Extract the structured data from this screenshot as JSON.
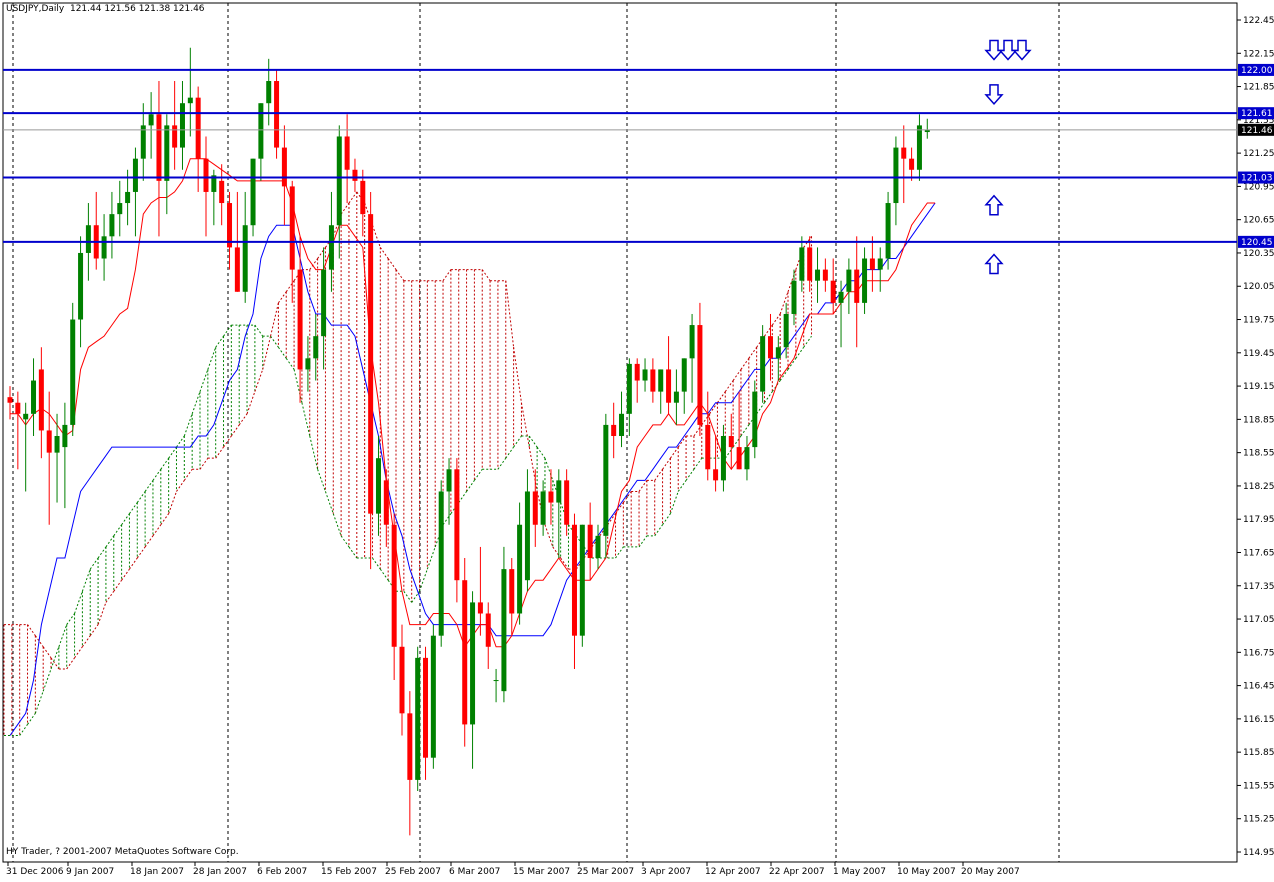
{
  "chart_data": {
    "type": "candlestick",
    "symbol": "USDJPY",
    "timeframe": "Daily",
    "header": {
      "symbol_tf": "USDJPY,Daily",
      "ohlc": "121.44 121.56 121.38 121.46"
    },
    "copyright": "HY Trader, ? 2001-2007 MetaQuotes Software Corp.",
    "ylim": [
      114.95,
      122.45
    ],
    "y_ticks": [
      "122.45",
      "122.15",
      "121.85",
      "121.55",
      "121.25",
      "120.95",
      "120.65",
      "120.35",
      "120.05",
      "119.75",
      "119.45",
      "119.15",
      "118.85",
      "118.55",
      "118.25",
      "117.95",
      "117.65",
      "117.35",
      "117.05",
      "116.75",
      "116.45",
      "116.15",
      "115.85",
      "115.55",
      "115.25",
      "114.95"
    ],
    "x_labels": [
      "31 Dec 2006",
      "9 Jan 2007",
      "18 Jan 2007",
      "28 Jan 2007",
      "6 Feb 2007",
      "15 Feb 2007",
      "25 Feb 2007",
      "6 Mar 2007",
      "15 Mar 2007",
      "25 Mar 2007",
      "3 Apr 2007",
      "12 Apr 2007",
      "22 Apr 2007",
      "1 May 2007",
      "10 May 2007",
      "20 May 2007"
    ],
    "grid": "vertical-dashed",
    "current_price": "121.46",
    "levels": [
      {
        "value": 122.0,
        "label": "122.00"
      },
      {
        "value": 121.61,
        "label": "121.61"
      },
      {
        "value": 121.03,
        "label": "121.03"
      },
      {
        "value": 120.45,
        "label": "120.45"
      }
    ],
    "arrows": [
      {
        "direction": "down",
        "price": 122.18,
        "count": 3
      },
      {
        "direction": "down",
        "price": 121.78,
        "count": 1
      },
      {
        "direction": "up",
        "price": 120.78,
        "count": 1
      },
      {
        "direction": "up",
        "price": 120.25,
        "count": 1
      }
    ],
    "colors": {
      "bull": "#008000",
      "bear": "#ff0000",
      "tenkan": "#ff0000",
      "kijun": "#0000ff",
      "cloud_bull": "#008000",
      "cloud_bear": "#c00000",
      "level": "#0000cc"
    },
    "candles": [
      {
        "o": 119.05,
        "h": 119.15,
        "l": 118.85,
        "c": 119.0
      },
      {
        "o": 119.0,
        "h": 119.1,
        "l": 118.4,
        "c": 118.9
      },
      {
        "o": 118.85,
        "h": 119.0,
        "l": 118.2,
        "c": 118.9
      },
      {
        "o": 118.9,
        "h": 119.4,
        "l": 118.7,
        "c": 119.2
      },
      {
        "o": 119.3,
        "h": 119.5,
        "l": 118.5,
        "c": 118.75
      },
      {
        "o": 118.75,
        "h": 119.1,
        "l": 117.9,
        "c": 118.55
      },
      {
        "o": 118.55,
        "h": 118.9,
        "l": 118.1,
        "c": 118.7
      },
      {
        "o": 118.6,
        "h": 119.0,
        "l": 118.05,
        "c": 118.8
      },
      {
        "o": 118.8,
        "h": 119.9,
        "l": 118.7,
        "c": 119.75
      },
      {
        "o": 119.75,
        "h": 120.5,
        "l": 119.5,
        "c": 120.35
      },
      {
        "o": 120.35,
        "h": 120.8,
        "l": 120.1,
        "c": 120.6
      },
      {
        "o": 120.6,
        "h": 120.9,
        "l": 120.2,
        "c": 120.3
      },
      {
        "o": 120.3,
        "h": 120.7,
        "l": 120.1,
        "c": 120.5
      },
      {
        "o": 120.5,
        "h": 120.9,
        "l": 120.3,
        "c": 120.7
      },
      {
        "o": 120.7,
        "h": 121.0,
        "l": 120.5,
        "c": 120.8
      },
      {
        "o": 120.8,
        "h": 121.1,
        "l": 120.6,
        "c": 120.9
      },
      {
        "o": 120.9,
        "h": 121.3,
        "l": 120.5,
        "c": 121.2
      },
      {
        "o": 121.2,
        "h": 121.7,
        "l": 121.0,
        "c": 121.5
      },
      {
        "o": 121.5,
        "h": 121.8,
        "l": 121.2,
        "c": 121.6
      },
      {
        "o": 121.6,
        "h": 121.9,
        "l": 120.5,
        "c": 121.0
      },
      {
        "o": 121.0,
        "h": 121.6,
        "l": 120.7,
        "c": 121.5
      },
      {
        "o": 121.5,
        "h": 121.9,
        "l": 121.1,
        "c": 121.3
      },
      {
        "o": 121.3,
        "h": 121.9,
        "l": 121.1,
        "c": 121.7
      },
      {
        "o": 121.7,
        "h": 122.2,
        "l": 121.4,
        "c": 121.75
      },
      {
        "o": 121.75,
        "h": 121.85,
        "l": 120.9,
        "c": 121.2
      },
      {
        "o": 121.2,
        "h": 121.4,
        "l": 120.5,
        "c": 120.9
      },
      {
        "o": 120.9,
        "h": 121.1,
        "l": 120.6,
        "c": 121.05
      },
      {
        "o": 121.0,
        "h": 121.15,
        "l": 120.6,
        "c": 120.8
      },
      {
        "o": 120.8,
        "h": 120.9,
        "l": 120.2,
        "c": 120.4
      },
      {
        "o": 120.4,
        "h": 120.9,
        "l": 120.0,
        "c": 120.0
      },
      {
        "o": 120.0,
        "h": 120.9,
        "l": 119.9,
        "c": 120.6
      },
      {
        "o": 120.6,
        "h": 121.2,
        "l": 120.5,
        "c": 121.2
      },
      {
        "o": 121.2,
        "h": 121.7,
        "l": 121.0,
        "c": 121.7
      },
      {
        "o": 121.7,
        "h": 122.1,
        "l": 121.5,
        "c": 121.9
      },
      {
        "o": 121.9,
        "h": 122.0,
        "l": 121.2,
        "c": 121.3
      },
      {
        "o": 121.3,
        "h": 121.5,
        "l": 120.6,
        "c": 120.95
      },
      {
        "o": 120.95,
        "h": 121.0,
        "l": 119.9,
        "c": 120.2
      },
      {
        "o": 120.2,
        "h": 120.5,
        "l": 119.0,
        "c": 119.3
      },
      {
        "o": 119.3,
        "h": 119.6,
        "l": 119.1,
        "c": 119.4
      },
      {
        "o": 119.4,
        "h": 119.8,
        "l": 119.2,
        "c": 119.6
      },
      {
        "o": 119.6,
        "h": 120.4,
        "l": 119.3,
        "c": 120.2
      },
      {
        "o": 120.2,
        "h": 120.9,
        "l": 120.0,
        "c": 120.6
      },
      {
        "o": 120.6,
        "h": 121.5,
        "l": 120.3,
        "c": 121.4
      },
      {
        "o": 121.4,
        "h": 121.6,
        "l": 120.8,
        "c": 121.1
      },
      {
        "o": 121.1,
        "h": 121.2,
        "l": 120.9,
        "c": 121.0
      },
      {
        "o": 121.0,
        "h": 121.1,
        "l": 120.5,
        "c": 120.7
      },
      {
        "o": 120.7,
        "h": 120.9,
        "l": 117.5,
        "c": 118.0
      },
      {
        "o": 118.0,
        "h": 118.7,
        "l": 117.8,
        "c": 118.5
      },
      {
        "o": 118.3,
        "h": 118.4,
        "l": 117.7,
        "c": 117.9
      },
      {
        "o": 117.9,
        "h": 118.0,
        "l": 116.5,
        "c": 116.8
      },
      {
        "o": 116.8,
        "h": 117.0,
        "l": 116.0,
        "c": 116.2
      },
      {
        "o": 116.2,
        "h": 116.4,
        "l": 115.1,
        "c": 115.6
      },
      {
        "o": 115.6,
        "h": 116.8,
        "l": 115.5,
        "c": 116.7
      },
      {
        "o": 116.7,
        "h": 116.8,
        "l": 115.6,
        "c": 115.8
      },
      {
        "o": 115.8,
        "h": 117.0,
        "l": 115.7,
        "c": 116.9
      },
      {
        "o": 116.9,
        "h": 118.3,
        "l": 116.8,
        "c": 118.2
      },
      {
        "o": 118.2,
        "h": 118.5,
        "l": 117.9,
        "c": 118.4
      },
      {
        "o": 118.4,
        "h": 118.5,
        "l": 117.2,
        "c": 117.4
      },
      {
        "o": 117.4,
        "h": 117.6,
        "l": 115.9,
        "c": 116.1
      },
      {
        "o": 116.1,
        "h": 117.3,
        "l": 115.7,
        "c": 117.2
      },
      {
        "o": 117.2,
        "h": 117.7,
        "l": 116.9,
        "c": 117.1
      },
      {
        "o": 117.1,
        "h": 117.2,
        "l": 116.6,
        "c": 116.8
      },
      {
        "o": 116.5,
        "h": 116.6,
        "l": 116.3,
        "c": 116.5
      },
      {
        "o": 116.4,
        "h": 117.7,
        "l": 116.3,
        "c": 117.5
      },
      {
        "o": 117.5,
        "h": 117.6,
        "l": 116.9,
        "c": 117.1
      },
      {
        "o": 117.1,
        "h": 118.1,
        "l": 117.0,
        "c": 117.9
      },
      {
        "o": 117.4,
        "h": 118.4,
        "l": 117.3,
        "c": 118.2
      },
      {
        "o": 118.2,
        "h": 118.4,
        "l": 117.7,
        "c": 117.9
      },
      {
        "o": 117.9,
        "h": 118.3,
        "l": 117.8,
        "c": 118.2
      },
      {
        "o": 118.2,
        "h": 118.4,
        "l": 117.9,
        "c": 118.1
      },
      {
        "o": 118.1,
        "h": 118.4,
        "l": 117.6,
        "c": 118.3
      },
      {
        "o": 118.3,
        "h": 118.4,
        "l": 117.8,
        "c": 117.9
      },
      {
        "o": 117.9,
        "h": 118.0,
        "l": 116.6,
        "c": 116.9
      },
      {
        "o": 116.9,
        "h": 117.9,
        "l": 116.8,
        "c": 117.9
      },
      {
        "o": 117.9,
        "h": 118.1,
        "l": 117.4,
        "c": 117.6
      },
      {
        "o": 117.6,
        "h": 117.9,
        "l": 117.5,
        "c": 117.8
      },
      {
        "o": 117.8,
        "h": 118.9,
        "l": 117.6,
        "c": 118.8
      },
      {
        "o": 118.8,
        "h": 119.0,
        "l": 118.5,
        "c": 118.7
      },
      {
        "o": 118.7,
        "h": 119.1,
        "l": 118.6,
        "c": 118.9
      },
      {
        "o": 118.9,
        "h": 119.4,
        "l": 118.7,
        "c": 119.35
      },
      {
        "o": 119.35,
        "h": 119.4,
        "l": 119.0,
        "c": 119.2
      },
      {
        "o": 119.2,
        "h": 119.4,
        "l": 119.1,
        "c": 119.3
      },
      {
        "o": 119.3,
        "h": 119.4,
        "l": 119.0,
        "c": 119.1
      },
      {
        "o": 119.1,
        "h": 119.3,
        "l": 118.9,
        "c": 119.3
      },
      {
        "o": 119.3,
        "h": 119.6,
        "l": 118.9,
        "c": 119.0
      },
      {
        "o": 119.0,
        "h": 119.3,
        "l": 118.8,
        "c": 119.1
      },
      {
        "o": 119.1,
        "h": 119.4,
        "l": 118.9,
        "c": 119.4
      },
      {
        "o": 119.4,
        "h": 119.8,
        "l": 119.0,
        "c": 119.7
      },
      {
        "o": 119.7,
        "h": 119.9,
        "l": 118.7,
        "c": 118.8
      },
      {
        "o": 118.8,
        "h": 119.1,
        "l": 118.3,
        "c": 118.4
      },
      {
        "o": 118.4,
        "h": 118.7,
        "l": 118.2,
        "c": 118.3
      },
      {
        "o": 118.3,
        "h": 118.8,
        "l": 118.2,
        "c": 118.7
      },
      {
        "o": 118.7,
        "h": 118.9,
        "l": 118.4,
        "c": 118.6
      },
      {
        "o": 118.6,
        "h": 119.1,
        "l": 118.4,
        "c": 118.4
      },
      {
        "o": 118.4,
        "h": 118.7,
        "l": 118.3,
        "c": 118.6
      },
      {
        "o": 118.6,
        "h": 119.2,
        "l": 118.5,
        "c": 119.1
      },
      {
        "o": 119.1,
        "h": 119.7,
        "l": 119.0,
        "c": 119.6
      },
      {
        "o": 119.6,
        "h": 119.8,
        "l": 119.2,
        "c": 119.4
      },
      {
        "o": 119.4,
        "h": 119.6,
        "l": 119.2,
        "c": 119.5
      },
      {
        "o": 119.5,
        "h": 119.9,
        "l": 119.4,
        "c": 119.8
      },
      {
        "o": 119.8,
        "h": 120.2,
        "l": 119.7,
        "c": 120.1
      },
      {
        "o": 120.1,
        "h": 120.5,
        "l": 120.0,
        "c": 120.4
      },
      {
        "o": 120.4,
        "h": 120.5,
        "l": 120.0,
        "c": 120.1
      },
      {
        "o": 120.1,
        "h": 120.4,
        "l": 119.9,
        "c": 120.2
      },
      {
        "o": 120.2,
        "h": 120.3,
        "l": 120.0,
        "c": 120.1
      },
      {
        "o": 120.1,
        "h": 120.3,
        "l": 119.8,
        "c": 119.9
      },
      {
        "o": 119.9,
        "h": 120.1,
        "l": 119.5,
        "c": 120.0
      },
      {
        "o": 120.0,
        "h": 120.3,
        "l": 119.8,
        "c": 120.2
      },
      {
        "o": 120.2,
        "h": 120.5,
        "l": 119.5,
        "c": 119.9
      },
      {
        "o": 119.9,
        "h": 120.4,
        "l": 119.8,
        "c": 120.3
      },
      {
        "o": 120.3,
        "h": 120.5,
        "l": 120.0,
        "c": 120.2
      },
      {
        "o": 120.2,
        "h": 120.4,
        "l": 120.0,
        "c": 120.3
      },
      {
        "o": 120.3,
        "h": 120.9,
        "l": 120.2,
        "c": 120.8
      },
      {
        "o": 120.8,
        "h": 121.4,
        "l": 120.6,
        "c": 121.3
      },
      {
        "o": 121.3,
        "h": 121.5,
        "l": 120.8,
        "c": 121.2
      },
      {
        "o": 121.2,
        "h": 121.3,
        "l": 121.0,
        "c": 121.1
      },
      {
        "o": 121.1,
        "h": 121.6,
        "l": 121.0,
        "c": 121.5
      },
      {
        "o": 121.44,
        "h": 121.56,
        "l": 121.38,
        "c": 121.46
      }
    ],
    "tenkan": [
      118.9,
      118.9,
      118.8,
      118.9,
      118.95,
      118.9,
      118.8,
      118.7,
      118.75,
      119.3,
      119.5,
      119.55,
      119.6,
      119.7,
      119.8,
      119.85,
      120.2,
      120.7,
      120.8,
      120.85,
      120.85,
      120.9,
      121.0,
      121.2,
      121.2,
      121.2,
      121.15,
      121.1,
      121.05,
      121.0,
      121.0,
      121.0,
      121.0,
      121.0,
      121.0,
      121.0,
      120.8,
      120.5,
      120.3,
      120.2,
      120.2,
      120.4,
      120.6,
      120.6,
      120.5,
      120.4,
      119.5,
      119.0,
      118.3,
      117.8,
      117.3,
      117.0,
      117.0,
      117.0,
      117.1,
      117.1,
      117.1,
      117.0,
      116.8,
      116.9,
      117.0,
      117.0,
      116.8,
      116.8,
      116.9,
      117.1,
      117.3,
      117.4,
      117.4,
      117.5,
      117.6,
      117.5,
      117.4,
      117.4,
      117.4,
      117.5,
      117.6,
      117.9,
      118.2,
      118.3,
      118.6,
      118.7,
      118.8,
      118.8,
      118.9,
      118.8,
      118.8,
      118.9,
      119.0,
      118.9,
      118.7,
      118.5,
      118.4,
      118.5,
      118.6,
      118.7,
      118.9,
      119.0,
      119.2,
      119.3,
      119.4,
      119.6,
      119.8,
      119.8,
      119.8,
      119.8,
      119.9,
      120.0,
      120.0,
      120.1,
      120.1,
      120.1,
      120.1,
      120.2,
      120.4,
      120.6,
      120.7,
      120.8,
      120.8
    ],
    "kijun": [
      116.0,
      116.1,
      116.2,
      116.5,
      117.0,
      117.3,
      117.6,
      117.6,
      117.9,
      118.2,
      118.3,
      118.4,
      118.5,
      118.6,
      118.6,
      118.6,
      118.6,
      118.6,
      118.6,
      118.6,
      118.6,
      118.6,
      118.6,
      118.6,
      118.7,
      118.7,
      118.8,
      119.0,
      119.2,
      119.3,
      119.6,
      119.8,
      120.3,
      120.5,
      120.6,
      120.6,
      120.6,
      120.3,
      120.0,
      119.8,
      119.8,
      119.7,
      119.7,
      119.7,
      119.6,
      119.3,
      119.0,
      118.7,
      118.3,
      118.0,
      117.8,
      117.5,
      117.3,
      117.1,
      117.0,
      117.0,
      117.0,
      117.0,
      117.0,
      117.0,
      117.0,
      117.0,
      116.9,
      116.9,
      116.9,
      116.9,
      116.9,
      116.9,
      116.9,
      117.0,
      117.2,
      117.4,
      117.5,
      117.6,
      117.7,
      117.8,
      117.9,
      118.0,
      118.1,
      118.2,
      118.3,
      118.3,
      118.4,
      118.5,
      118.6,
      118.6,
      118.7,
      118.8,
      118.9,
      118.9,
      119.0,
      119.0,
      119.0,
      119.1,
      119.2,
      119.3,
      119.3,
      119.4,
      119.4,
      119.5,
      119.6,
      119.7,
      119.8,
      119.8,
      119.9,
      119.9,
      120.0,
      120.1,
      120.1,
      120.2,
      120.2,
      120.2,
      120.3,
      120.3,
      120.4,
      120.5,
      120.6,
      120.7,
      120.8
    ],
    "senkou_a": [
      117.0,
      117.0,
      117.0,
      117.0,
      116.9,
      116.8,
      116.7,
      116.6,
      116.6,
      116.7,
      116.8,
      116.9,
      117.0,
      117.2,
      117.3,
      117.4,
      117.5,
      117.6,
      117.7,
      117.8,
      117.9,
      118.0,
      118.2,
      118.3,
      118.4,
      118.4,
      118.5,
      118.5,
      118.6,
      118.7,
      118.8,
      118.9,
      119.1,
      119.3,
      119.6,
      119.9,
      120.0,
      120.1,
      120.2,
      120.2,
      120.3,
      120.4,
      120.5,
      120.7,
      120.8,
      120.9,
      120.8,
      120.6,
      120.4,
      120.3,
      120.2,
      120.1,
      120.1,
      120.1,
      120.1,
      120.1,
      120.1,
      120.2,
      120.2,
      120.2,
      120.2,
      120.2,
      120.1,
      120.1,
      120.1,
      119.5,
      119.0,
      118.6,
      118.2,
      117.9,
      117.7,
      117.6,
      117.5,
      117.5,
      117.6,
      117.7,
      117.8,
      117.9,
      118.0,
      118.1,
      118.2,
      118.2,
      118.3,
      118.3,
      118.4,
      118.5,
      118.6,
      118.7,
      118.7,
      118.8,
      118.9,
      119.0,
      119.1,
      119.2,
      119.3,
      119.4,
      119.5,
      119.6,
      119.7,
      119.8,
      120.0,
      120.2,
      120.4,
      120.5
    ],
    "senkou_b": [
      116.0,
      116.0,
      116.0,
      116.1,
      116.2,
      116.4,
      116.6,
      116.8,
      117.0,
      117.1,
      117.3,
      117.5,
      117.6,
      117.7,
      117.8,
      117.9,
      118.0,
      118.1,
      118.2,
      118.3,
      118.4,
      118.5,
      118.6,
      118.7,
      118.9,
      119.1,
      119.3,
      119.5,
      119.6,
      119.7,
      119.7,
      119.7,
      119.7,
      119.6,
      119.6,
      119.5,
      119.4,
      119.3,
      119.0,
      118.7,
      118.4,
      118.2,
      118.0,
      117.8,
      117.7,
      117.6,
      117.6,
      117.6,
      117.5,
      117.4,
      117.3,
      117.3,
      117.2,
      117.3,
      117.5,
      117.7,
      117.9,
      118.0,
      118.1,
      118.2,
      118.3,
      118.4,
      118.4,
      118.4,
      118.5,
      118.6,
      118.7,
      118.7,
      118.6,
      118.5,
      118.3,
      118.1,
      117.9,
      117.8,
      117.7,
      117.6,
      117.6,
      117.6,
      117.6,
      117.7,
      117.7,
      117.7,
      117.8,
      117.8,
      117.9,
      118.0,
      118.2,
      118.3,
      118.4,
      118.5,
      118.5,
      118.5,
      118.5,
      118.6,
      118.7,
      118.8,
      118.9,
      119.0,
      119.1,
      119.2,
      119.3,
      119.4,
      119.5,
      119.6
    ]
  }
}
